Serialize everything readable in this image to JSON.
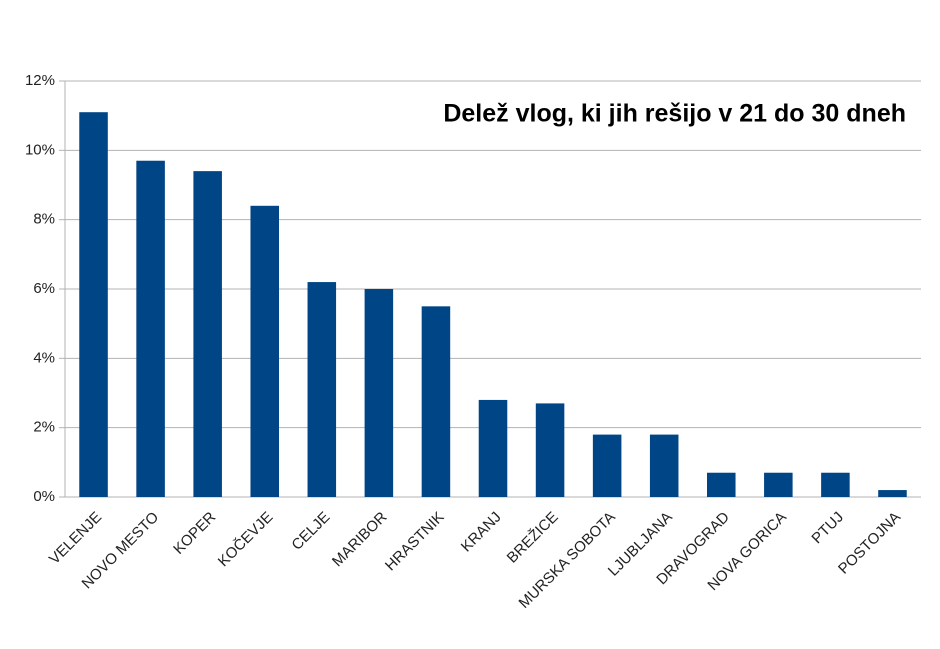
{
  "chart_data": {
    "type": "bar",
    "title": "Delež vlog, ki jih rešijo v 21 do 30 dneh",
    "categories": [
      "VELENJE",
      "NOVO MESTO",
      "KOPER",
      "KOČEVJE",
      "CELJE",
      "MARIBOR",
      "HRASTNIK",
      "KRANJ",
      "BREŽICE",
      "MURSKA SOBOTA",
      "LJUBLJANA",
      "DRAVOGRAD",
      "NOVA GORICA",
      "PTUJ",
      "POSTOJNA"
    ],
    "values": [
      11.1,
      9.7,
      9.4,
      8.4,
      6.2,
      6.0,
      5.5,
      2.8,
      2.7,
      1.8,
      1.8,
      0.7,
      0.7,
      0.7,
      0.2
    ],
    "color": "#004586",
    "ylim": [
      0,
      12
    ],
    "yticks": [
      {
        "value": 0,
        "label": "0%"
      },
      {
        "value": 2,
        "label": "2%"
      },
      {
        "value": 4,
        "label": "4%"
      },
      {
        "value": 6,
        "label": "6%"
      },
      {
        "value": 8,
        "label": "8%"
      },
      {
        "value": 10,
        "label": "10%"
      },
      {
        "value": 12,
        "label": "12%"
      }
    ],
    "grid": true
  }
}
